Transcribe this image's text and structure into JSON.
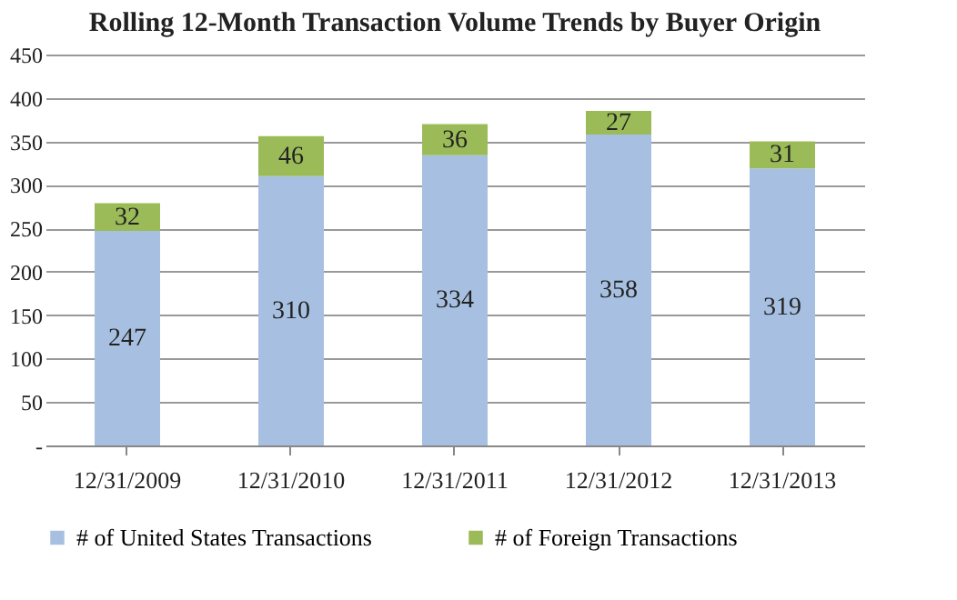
{
  "chart_data": {
    "type": "bar",
    "title": "Rolling 12-Month Transaction Volume Trends by Buyer Origin",
    "categories": [
      "12/31/2009",
      "12/31/2010",
      "12/31/2011",
      "12/31/2012",
      "12/31/2013"
    ],
    "series": [
      {
        "name": "# of United States Transactions",
        "color": "#a7c0e1",
        "values": [
          247,
          310,
          334,
          358,
          319
        ]
      },
      {
        "name": "# of Foreign Transactions",
        "color": "#9bbb59",
        "values": [
          32,
          46,
          36,
          27,
          31
        ]
      }
    ],
    "stacked": true,
    "data_labels": true,
    "ylim": [
      0,
      450
    ],
    "yticks": [
      {
        "value": 0,
        "label": "-"
      },
      50,
      100,
      150,
      200,
      250,
      300,
      350,
      400,
      450
    ],
    "grid": "y",
    "legend": "bottom"
  }
}
